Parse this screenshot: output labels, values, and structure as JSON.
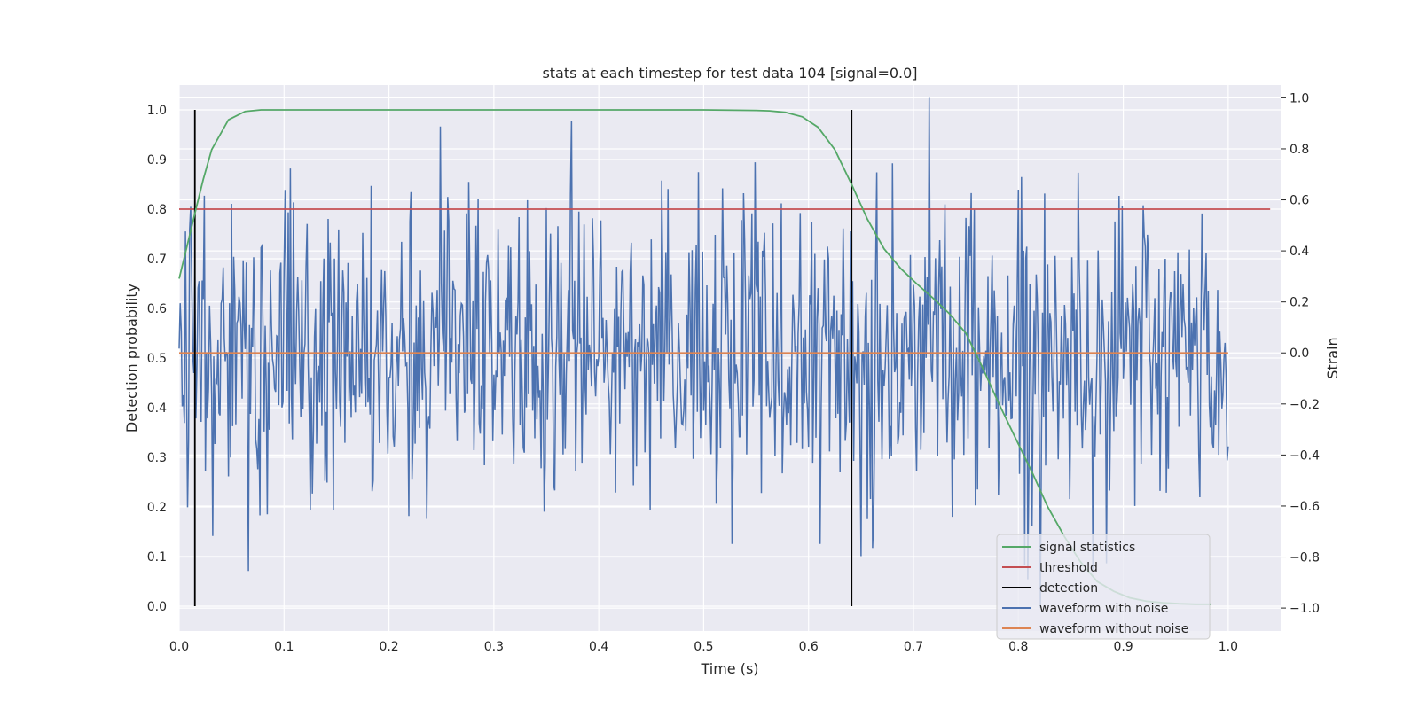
{
  "chart_data": {
    "type": "line",
    "title": "stats at each timestep for test data 104 [signal=0.0]",
    "xlabel": "Time (s)",
    "ylabel": "Detection probability",
    "ylabel_right": "Strain",
    "xlim": [
      0.0,
      1.05
    ],
    "ylim": [
      -0.05,
      1.05
    ],
    "ylim_right": [
      -1.09,
      1.05
    ],
    "x_ticks": [
      "0.0",
      "0.1",
      "0.2",
      "0.3",
      "0.4",
      "0.5",
      "0.6",
      "0.7",
      "0.8",
      "0.9",
      "1.0"
    ],
    "y_ticks": [
      "0.0",
      "0.1",
      "0.2",
      "0.3",
      "0.4",
      "0.5",
      "0.6",
      "0.7",
      "0.8",
      "0.9",
      "1.0"
    ],
    "y_ticks_right": [
      "−1.0",
      "−0.8",
      "−0.6",
      "−0.4",
      "−0.2",
      "0.0",
      "0.2",
      "0.4",
      "0.6",
      "0.8",
      "1.0"
    ],
    "grid": true,
    "legend_position": "lower-right",
    "colors": {
      "signal": "#55a868",
      "threshold": "#c44e52",
      "detection": "#000000",
      "noisy": "#4c72b0",
      "clean": "#dd8452",
      "plot_bg": "#eaeaf2",
      "grid": "#ffffff"
    },
    "legend": [
      "signal statistics",
      "threshold",
      "detection",
      "waveform with noise",
      "waveform without noise"
    ],
    "signal_statistics": {
      "x": [
        0.0,
        0.008,
        0.016,
        0.023,
        0.031,
        0.047,
        0.063,
        0.078,
        0.094,
        0.109,
        0.2,
        0.3,
        0.4,
        0.5,
        0.55,
        0.563,
        0.578,
        0.594,
        0.609,
        0.625,
        0.641,
        0.656,
        0.672,
        0.688,
        0.703,
        0.719,
        0.734,
        0.75,
        0.766,
        0.781,
        0.797,
        0.813,
        0.828,
        0.844,
        0.859,
        0.875,
        0.891,
        0.906,
        0.922,
        0.938,
        0.953,
        0.969,
        0.984
      ],
      "y": [
        0.66,
        0.73,
        0.8,
        0.86,
        0.92,
        0.98,
        0.997,
        1.0,
        1.0,
        1.0,
        1.0,
        1.0,
        1.0,
        1.0,
        0.999,
        0.998,
        0.995,
        0.986,
        0.965,
        0.92,
        0.85,
        0.78,
        0.72,
        0.68,
        0.65,
        0.62,
        0.59,
        0.55,
        0.48,
        0.41,
        0.34,
        0.27,
        0.2,
        0.14,
        0.09,
        0.05,
        0.03,
        0.017,
        0.01,
        0.007,
        0.005,
        0.004,
        0.004
      ]
    },
    "threshold": {
      "value": 0.8,
      "x_range": [
        0.0,
        1.04
      ]
    },
    "detections": {
      "x": [
        0.015,
        0.641
      ],
      "y_range": [
        0.0,
        1.0
      ]
    },
    "waveform_without_noise": {
      "x_range": [
        0.0,
        1.0
      ],
      "value": 0.0
    },
    "waveform_with_noise": {
      "x_range": [
        0.0,
        1.0
      ],
      "samples": 1001,
      "seed": 104,
      "std": 0.3,
      "clip": [
        -1.0,
        1.0
      ]
    }
  }
}
